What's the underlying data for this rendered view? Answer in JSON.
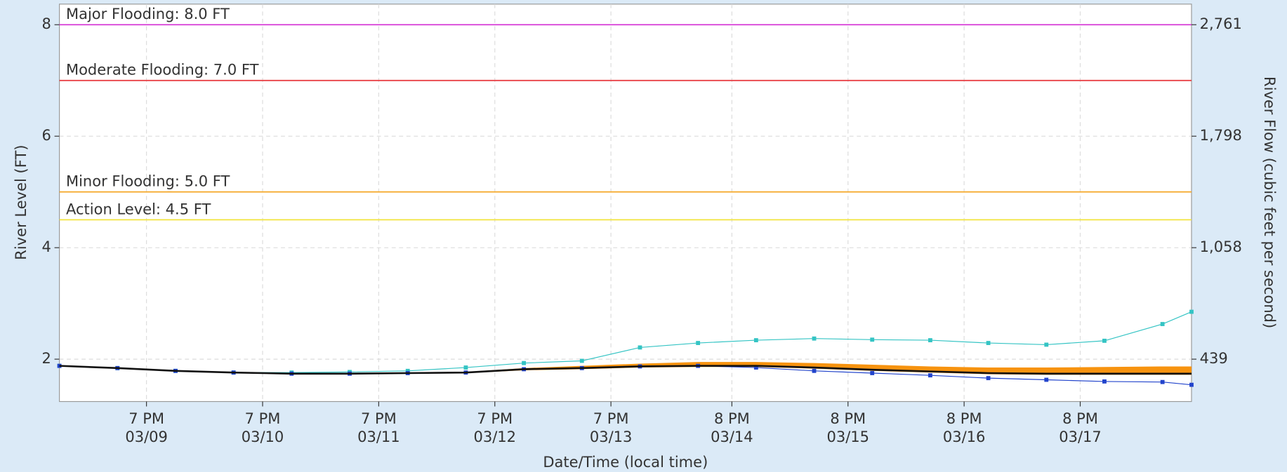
{
  "chart_data": {
    "type": "line",
    "ylabel": "River Level (FT)",
    "y2label": "River Flow (cubic feet per second)",
    "xlabel": "Date/Time (local time)",
    "ylim": [
      1.24,
      8.37
    ],
    "yticks": [
      2,
      4,
      6,
      8
    ],
    "y2ticks": [
      {
        "value": 439,
        "label": "439"
      },
      {
        "value": 1058,
        "label": "1,058"
      },
      {
        "value": 1798,
        "label": "1,798"
      },
      {
        "value": 2761,
        "label": "2,761"
      }
    ],
    "xlim": [
      "03/09 01:00",
      "03/18 19:00"
    ],
    "xticks": [
      {
        "value": "03/09 19:00",
        "label": [
          "7 PM",
          "03/09"
        ]
      },
      {
        "value": "03/10 19:00",
        "label": [
          "7 PM",
          "03/10"
        ]
      },
      {
        "value": "03/11 19:00",
        "label": [
          "7 PM",
          "03/11"
        ]
      },
      {
        "value": "03/12 19:00",
        "label": [
          "7 PM",
          "03/12"
        ]
      },
      {
        "value": "03/13 19:00",
        "label": [
          "7 PM",
          "03/13"
        ]
      },
      {
        "value": "03/14 20:00",
        "label": [
          "8 PM",
          "03/14"
        ]
      },
      {
        "value": "03/15 20:00",
        "label": [
          "8 PM",
          "03/15"
        ]
      },
      {
        "value": "03/16 20:00",
        "label": [
          "8 PM",
          "03/16"
        ]
      },
      {
        "value": "03/17 20:00",
        "label": [
          "8 PM",
          "03/17"
        ]
      }
    ],
    "grid": true,
    "thresholds": [
      {
        "label": "Major Flooding: 8.0 FT",
        "value": 8.0,
        "color": "#d63ad6"
      },
      {
        "label": "Moderate Flooding: 7.0 FT",
        "value": 7.0,
        "color": "#e8343a"
      },
      {
        "label": "Minor Flooding: 5.0 FT",
        "value": 5.0,
        "color": "#f5a623"
      },
      {
        "label": "Action Level: 4.5 FT",
        "value": 4.5,
        "color": "#f2e43c"
      }
    ],
    "x": [
      "03/09 01:00",
      "03/09 13:00",
      "03/10 01:00",
      "03/10 13:00",
      "03/11 01:00",
      "03/11 13:00",
      "03/12 01:00",
      "03/12 13:00",
      "03/13 01:00",
      "03/13 13:00",
      "03/14 01:00",
      "03/14 13:00",
      "03/15 01:00",
      "03/15 13:00",
      "03/16 01:00",
      "03/16 13:00",
      "03/17 01:00",
      "03/17 13:00",
      "03/18 01:00",
      "03/18 13:00",
      "03/18 19:00"
    ],
    "band": {
      "color": "#f7930f",
      "upper": [
        1.89,
        1.85,
        1.8,
        1.77,
        1.75,
        1.75,
        1.76,
        1.77,
        1.84,
        1.88,
        1.92,
        1.95,
        1.95,
        1.93,
        1.9,
        1.87,
        1.85,
        1.85,
        1.86,
        1.87,
        1.87
      ],
      "lower": [
        1.87,
        1.83,
        1.78,
        1.75,
        1.73,
        1.73,
        1.74,
        1.75,
        1.8,
        1.82,
        1.85,
        1.86,
        1.86,
        1.83,
        1.79,
        1.76,
        1.73,
        1.72,
        1.72,
        1.72,
        1.72
      ]
    },
    "series": [
      {
        "color": "#34c4c4",
        "markers": true,
        "values": [
          1.88,
          1.84,
          1.79,
          1.76,
          1.76,
          1.77,
          1.79,
          1.85,
          1.93,
          1.97,
          2.21,
          2.29,
          2.34,
          2.37,
          2.35,
          2.34,
          2.29,
          2.26,
          2.33,
          2.63,
          2.85
        ]
      },
      {
        "color": "#2244cc",
        "markers": true,
        "values": [
          1.88,
          1.84,
          1.79,
          1.76,
          1.74,
          1.74,
          1.75,
          1.76,
          1.82,
          1.84,
          1.87,
          1.88,
          1.85,
          1.79,
          1.75,
          1.71,
          1.66,
          1.63,
          1.6,
          1.59,
          1.54
        ]
      },
      {
        "color": "#111111",
        "markers": false,
        "values": [
          1.88,
          1.84,
          1.79,
          1.76,
          1.74,
          1.74,
          1.75,
          1.76,
          1.82,
          1.84,
          1.87,
          1.88,
          1.88,
          1.85,
          1.81,
          1.78,
          1.75,
          1.74,
          1.74,
          1.74,
          1.74
        ]
      }
    ]
  }
}
